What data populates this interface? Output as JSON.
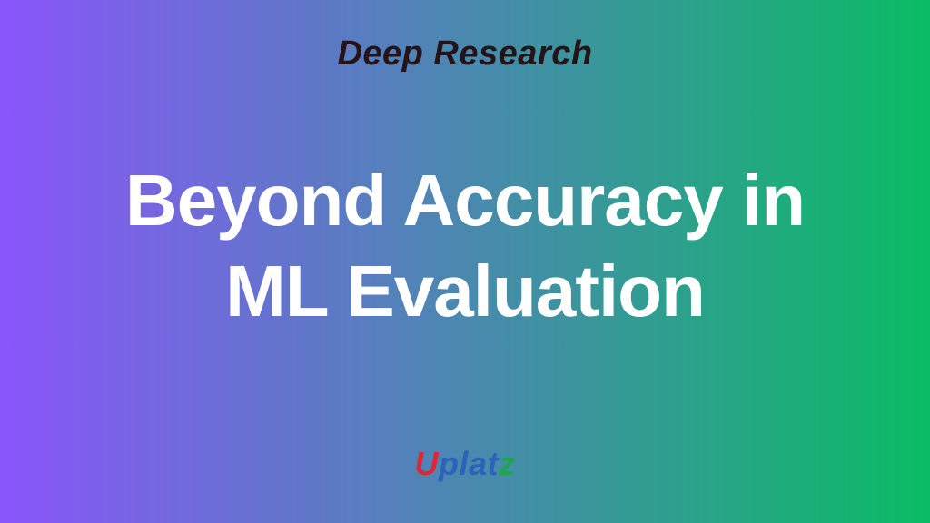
{
  "slide": {
    "header_title": "Deep Research",
    "title_line1": "Beyond Accuracy in",
    "title_line2": "ML Evaluation"
  },
  "logo": {
    "segments": [
      {
        "text": "U",
        "color": "#dd2735"
      },
      {
        "text": "plat",
        "color": "#2a63b8"
      },
      {
        "text": "z",
        "color": "#21a353"
      }
    ]
  },
  "colors": {
    "gradient_left": "#8a55fa",
    "gradient_right": "#0abc64",
    "header_text": "#241318",
    "title_text": "#ffffff"
  }
}
